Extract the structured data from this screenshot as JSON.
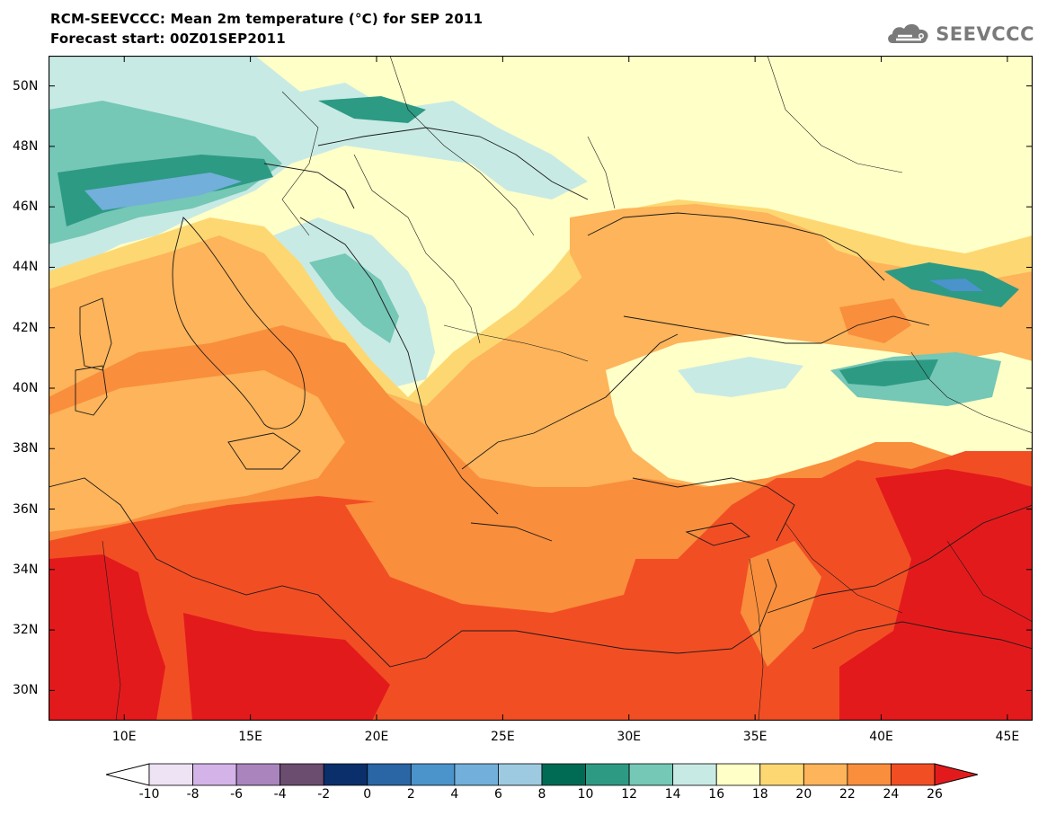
{
  "header": {
    "title": "RCM-SEEVCCC: Mean 2m temperature (°C) for SEP 2011",
    "subtitle": "Forecast start: 00Z01SEP2011"
  },
  "logo": {
    "text": "SEEVCCC",
    "icon": "cloud-logo-icon",
    "color": "#7a7a7a"
  },
  "map": {
    "lon_range": [
      7,
      46
    ],
    "lat_range": [
      29,
      51
    ],
    "lat_ticks": [
      {
        "value": 50,
        "label": "50N"
      },
      {
        "value": 48,
        "label": "48N"
      },
      {
        "value": 46,
        "label": "46N"
      },
      {
        "value": 44,
        "label": "44N"
      },
      {
        "value": 42,
        "label": "42N"
      },
      {
        "value": 40,
        "label": "40N"
      },
      {
        "value": 38,
        "label": "38N"
      },
      {
        "value": 36,
        "label": "36N"
      },
      {
        "value": 34,
        "label": "34N"
      },
      {
        "value": 32,
        "label": "32N"
      },
      {
        "value": 30,
        "label": "30N"
      }
    ],
    "lon_ticks": [
      {
        "value": 10,
        "label": "10E"
      },
      {
        "value": 15,
        "label": "15E"
      },
      {
        "value": 20,
        "label": "20E"
      },
      {
        "value": 25,
        "label": "25E"
      },
      {
        "value": 30,
        "label": "30E"
      },
      {
        "value": 35,
        "label": "35E"
      },
      {
        "value": 40,
        "label": "40E"
      },
      {
        "value": 45,
        "label": "45E"
      }
    ],
    "background_color": "#FFFFC8"
  },
  "colorbar": {
    "labels": [
      "-10",
      "-8",
      "-6",
      "-4",
      "-2",
      "0",
      "2",
      "4",
      "6",
      "8",
      "10",
      "12",
      "14",
      "16",
      "18",
      "20",
      "22",
      "24",
      "26"
    ],
    "under_color": "#FFFFFF",
    "over_color": "#E31A1C",
    "colors": [
      "#EEE2F5",
      "#D4B3E8",
      "#A984BD",
      "#6B4D70",
      "#0B2F6B",
      "#2A65A5",
      "#4A93CB",
      "#72AFDA",
      "#9ECAE1",
      "#006B54",
      "#2D9A84",
      "#75C7B6",
      "#C8EAE4",
      "#FFFFC8",
      "#FDD872",
      "#FDB45A",
      "#F98E3C",
      "#F24E24"
    ]
  }
}
